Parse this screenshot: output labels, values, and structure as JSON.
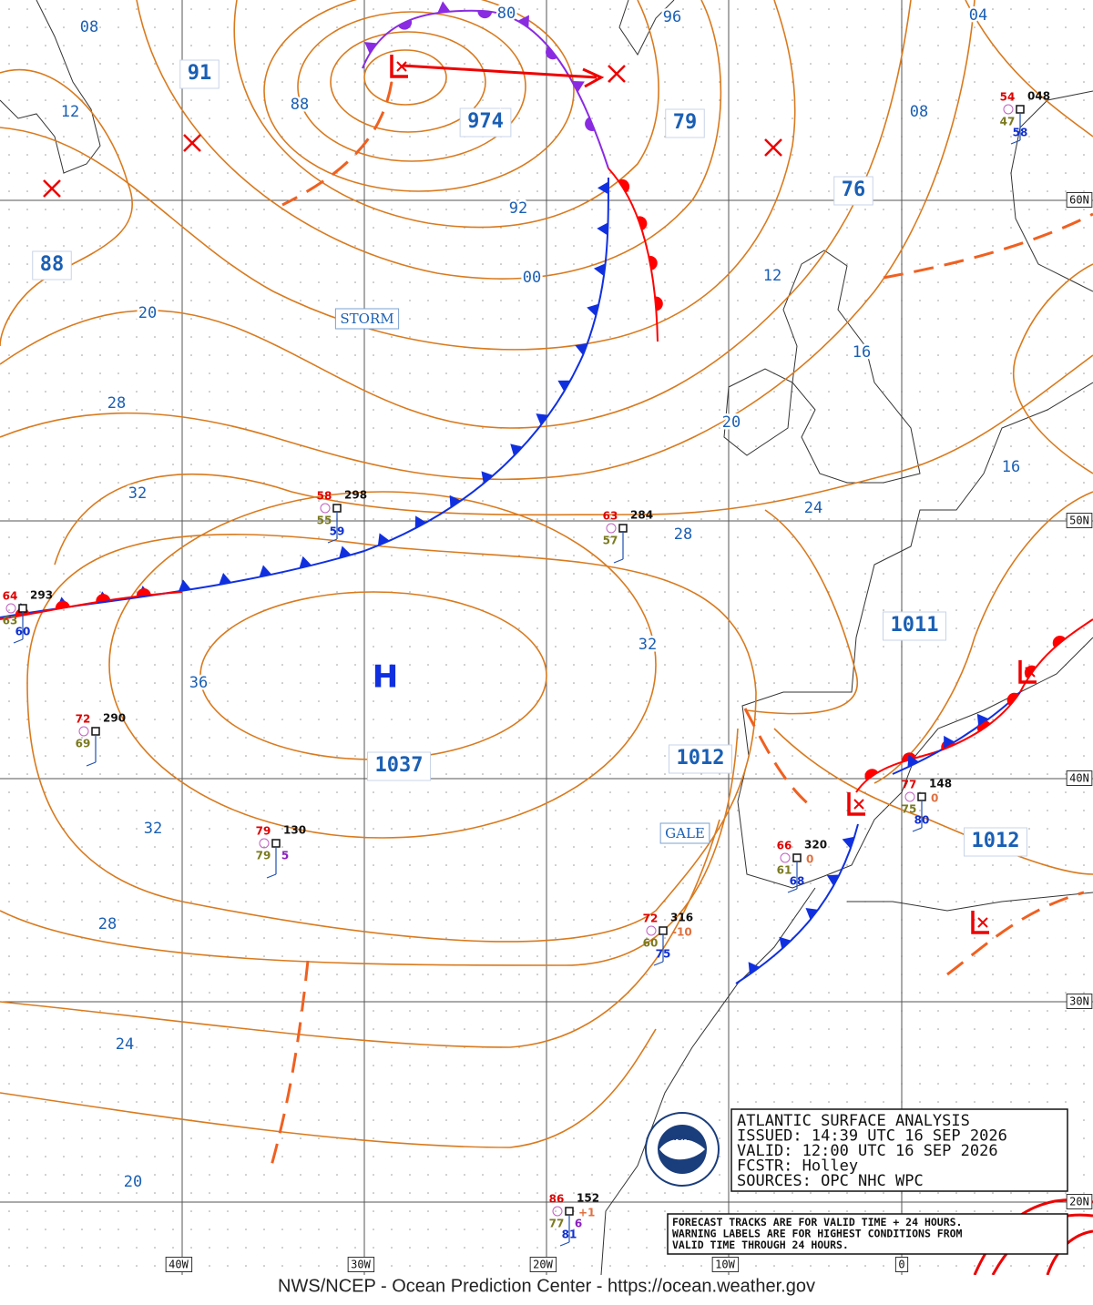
{
  "title_box": {
    "lines": [
      "ATLANTIC SURFACE ANALYSIS",
      "ISSUED: 14:39 UTC 16 SEP 2026",
      "VALID:  12:00 UTC 16 SEP 2026",
      "FCSTR:  Holley",
      "SOURCES: OPC NHC WPC"
    ]
  },
  "note": {
    "lines": [
      "FORECAST TRACKS ARE FOR VALID TIME + 24 HOURS.",
      "WARNING LABELS ARE FOR HIGHEST CONDITIONS FROM",
      "VALID TIME THROUGH 24 HOURS."
    ]
  },
  "footer": "NWS/NCEP - Ocean Prediction Center - https://ocean.weather.gov",
  "longitude_labels": [
    "40W",
    "30W",
    "20W",
    "10W",
    "0"
  ],
  "latitude_labels": [
    "60N",
    "50N",
    "40N",
    "30N",
    "20N"
  ],
  "isobar_labels": [
    "08",
    "12",
    "88",
    "92",
    "00",
    "20",
    "28",
    "32",
    "36",
    "32",
    "28",
    "24",
    "20",
    "80",
    "96",
    "04",
    "08",
    "12",
    "16",
    "20",
    "16",
    "24",
    "28",
    "32"
  ],
  "pressure_centers": [
    "91",
    "974",
    "79",
    "76",
    "88",
    "1011",
    "1012",
    "1037",
    "1012"
  ],
  "high_label": "H",
  "warnings": [
    "STORM",
    "GALE"
  ],
  "stations": [
    {
      "temperature": "58",
      "pressure": "298",
      "dew_point": "55",
      "sst": "59"
    },
    {
      "temperature": "63",
      "pressure": "284",
      "dew_point": "57"
    },
    {
      "temperature": "64",
      "pressure": "293",
      "dew_point": "63",
      "sst": "60"
    },
    {
      "temperature": "72",
      "pressure": "290",
      "dew_point": "69"
    },
    {
      "temperature": "79",
      "pressure": "130",
      "dew_point": "79",
      "weather": "5"
    },
    {
      "temperature": "66",
      "pressure": "320",
      "dew_point": "61",
      "sst": "68",
      "tendency": "0"
    },
    {
      "temperature": "77",
      "pressure": "148",
      "dew_point": "75",
      "sst": "80",
      "tendency": "0"
    },
    {
      "temperature": "72",
      "pressure": "316",
      "dew_point": "60",
      "sst": "75",
      "tendency": "-10"
    },
    {
      "temperature": "86",
      "pressure": "152",
      "dew_point": "77",
      "sst": "81",
      "weather": "6",
      "tendency": "+1"
    },
    {
      "temperature": "54",
      "pressure": "048",
      "dew_point": "47",
      "sst": "58"
    }
  ]
}
